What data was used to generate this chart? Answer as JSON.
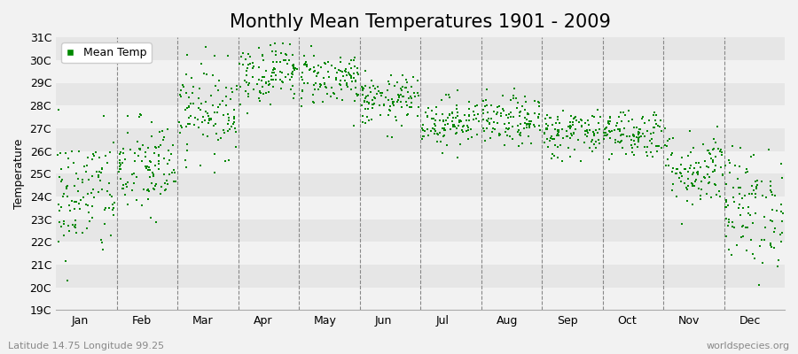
{
  "title": "Monthly Mean Temperatures 1901 - 2009",
  "ylabel": "Temperature",
  "subtitle_left": "Latitude 14.75 Longitude 99.25",
  "subtitle_right": "worldspecies.org",
  "ylim": [
    19,
    31
  ],
  "ytick_labels": [
    "19C",
    "20C",
    "21C",
    "22C",
    "23C",
    "24C",
    "25C",
    "26C",
    "27C",
    "28C",
    "29C",
    "30C",
    "31C"
  ],
  "months": [
    "Jan",
    "Feb",
    "Mar",
    "Apr",
    "May",
    "Jun",
    "Jul",
    "Aug",
    "Sep",
    "Oct",
    "Nov",
    "Dec"
  ],
  "monthly_means": [
    24.0,
    25.2,
    27.8,
    29.5,
    29.2,
    28.2,
    27.3,
    27.3,
    26.8,
    26.8,
    25.2,
    23.5
  ],
  "monthly_stds": [
    1.4,
    1.1,
    1.0,
    0.7,
    0.6,
    0.55,
    0.55,
    0.55,
    0.55,
    0.55,
    0.85,
    1.3
  ],
  "n_years": 109,
  "seed": 42,
  "dot_color": "#008800",
  "marker": "s",
  "marker_size": 2,
  "bg_color": "#f2f2f2",
  "band_color_light": "#f2f2f2",
  "band_color_dark": "#e6e6e6",
  "vline_color": "#888888",
  "legend_label": "Mean Temp",
  "title_fontsize": 15,
  "label_fontsize": 9,
  "tick_fontsize": 9
}
